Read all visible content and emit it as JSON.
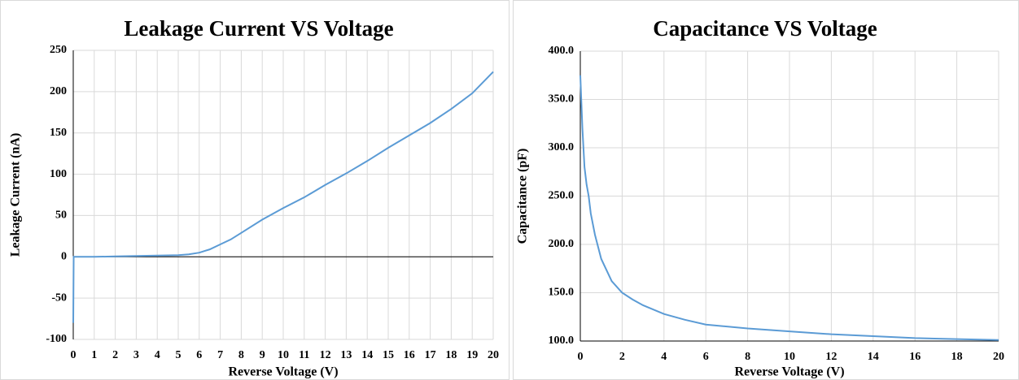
{
  "chart_data": [
    {
      "type": "line",
      "title": "Leakage Current VS Voltage",
      "x_label": "Reverse Voltage (V)",
      "y_label": "Leakage Current (nA)",
      "x": [
        0,
        0.02,
        0.1,
        1,
        2,
        3,
        4,
        5,
        5.5,
        6,
        6.5,
        7,
        7.5,
        8,
        9,
        10,
        11,
        12,
        13,
        14,
        15,
        16,
        17,
        18,
        19,
        20
      ],
      "series": [
        {
          "color": "#5b9bd5",
          "values": [
            -80,
            0,
            0,
            0,
            0.5,
            1,
            1.5,
            2,
            3,
            5,
            9,
            15,
            21,
            29,
            45,
            59,
            72,
            87,
            101,
            116,
            132,
            147,
            162,
            179,
            198,
            224
          ]
        }
      ],
      "xlim": [
        0,
        20
      ],
      "xticks": [
        0,
        1,
        2,
        3,
        4,
        5,
        6,
        7,
        8,
        9,
        10,
        11,
        12,
        13,
        14,
        15,
        16,
        17,
        18,
        19,
        20
      ],
      "ylim": [
        -100,
        250
      ],
      "yticks": [
        -100,
        -50,
        0,
        50,
        100,
        150,
        200,
        250
      ],
      "grid": true
    },
    {
      "type": "line",
      "title": "Capacitance VS Voltage",
      "x_label": "Reverse Voltage (V)",
      "y_label": "Capacitance  (pF)",
      "x": [
        0,
        0.1,
        0.2,
        0.3,
        0.4,
        0.5,
        0.7,
        1,
        1.5,
        2,
        2.5,
        3,
        4,
        5,
        6,
        8,
        10,
        12,
        14,
        16,
        18,
        20
      ],
      "series": [
        {
          "color": "#5b9bd5",
          "values": [
            375,
            320,
            280,
            262,
            250,
            232,
            210,
            185,
            162,
            150,
            143,
            137,
            128,
            122,
            117,
            113,
            110,
            107,
            105,
            103,
            102,
            101
          ]
        }
      ],
      "xlim": [
        0,
        20
      ],
      "xticks": [
        0,
        2,
        4,
        6,
        8,
        10,
        12,
        14,
        16,
        18,
        20
      ],
      "ylim": [
        100,
        400
      ],
      "yticks": [
        {
          "value": 100,
          "label": "100.0"
        },
        {
          "value": 150,
          "label": "150.0"
        },
        {
          "value": 200,
          "label": "200.0"
        },
        {
          "value": 250,
          "label": "250.0"
        },
        {
          "value": 300,
          "label": "300.0"
        },
        {
          "value": 350,
          "label": "350.0"
        },
        {
          "value": 400,
          "label": "400.0"
        }
      ],
      "grid": true
    }
  ]
}
